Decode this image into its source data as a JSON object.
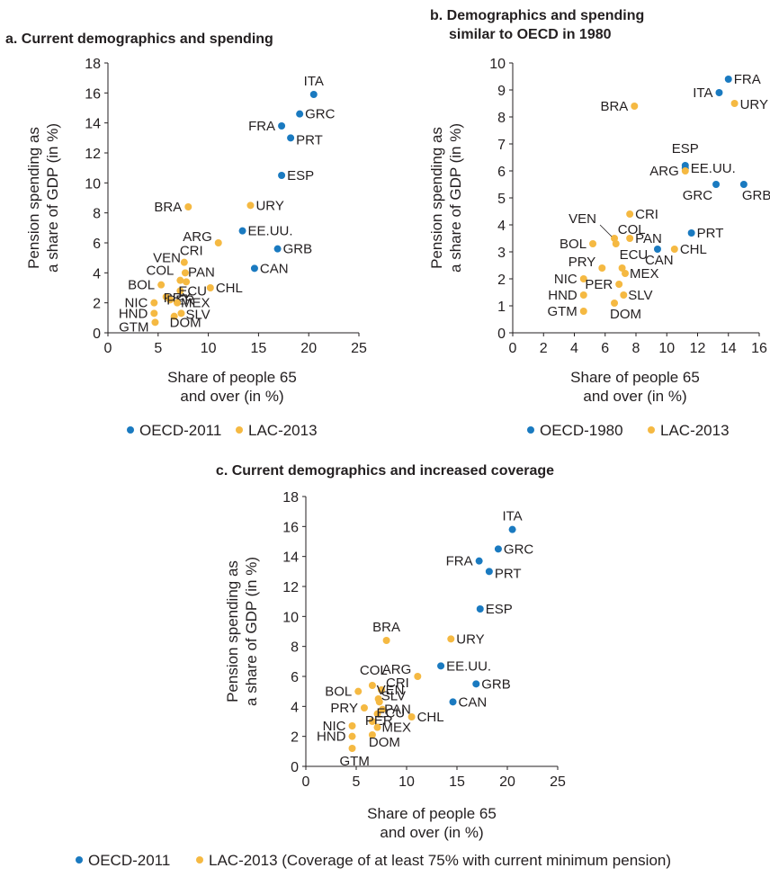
{
  "colors": {
    "oecd": "#1a7ac0",
    "lac": "#f5b942"
  },
  "chart_data": [
    {
      "id": "a",
      "type": "scatter",
      "title": [
        "a. Current demographics and spending"
      ],
      "xlabel": [
        "Share of people 65",
        "and over (in %)"
      ],
      "ylabel": [
        "Pension spending as",
        "a share of GDP (in %)"
      ],
      "xlim": [
        0,
        25
      ],
      "ylim": [
        0,
        18
      ],
      "xticks": [
        0,
        5,
        10,
        15,
        20,
        25
      ],
      "yticks": [
        0,
        2,
        4,
        6,
        8,
        10,
        12,
        14,
        16,
        18
      ],
      "legend": "bottom",
      "series": [
        {
          "name": "OECD-2011",
          "color": "oecd",
          "points": [
            {
              "label": "ITA",
              "x": 20.5,
              "y": 15.9
            },
            {
              "label": "GRC",
              "x": 19.1,
              "y": 14.6
            },
            {
              "label": "FRA",
              "x": 17.3,
              "y": 13.8
            },
            {
              "label": "PRT",
              "x": 18.2,
              "y": 13.0
            },
            {
              "label": "ESP",
              "x": 17.3,
              "y": 10.5
            },
            {
              "label": "EE.UU.",
              "x": 13.4,
              "y": 6.8
            },
            {
              "label": "GRB",
              "x": 16.9,
              "y": 5.6
            },
            {
              "label": "CAN",
              "x": 14.6,
              "y": 4.3
            }
          ]
        },
        {
          "name": "LAC-2013",
          "color": "lac",
          "points": [
            {
              "label": "BRA",
              "x": 8.0,
              "y": 8.4
            },
            {
              "label": "URY",
              "x": 14.2,
              "y": 8.5
            },
            {
              "label": "ARG",
              "x": 11.0,
              "y": 6.0
            },
            {
              "label": "CRI",
              "x": 7.6,
              "y": 4.7
            },
            {
              "label": "VEN",
              "x": 7.7,
              "y": 4.0
            },
            {
              "label": "COL",
              "x": 7.2,
              "y": 3.5
            },
            {
              "label": "PAN",
              "x": 7.8,
              "y": 3.4
            },
            {
              "label": "CHL",
              "x": 10.2,
              "y": 3.0
            },
            {
              "label": "BOL",
              "x": 5.3,
              "y": 3.2
            },
            {
              "label": "ECU",
              "x": 7.2,
              "y": 2.8
            },
            {
              "label": "PRY",
              "x": 5.8,
              "y": 2.4
            },
            {
              "label": "PER",
              "x": 6.2,
              "y": 2.2
            },
            {
              "label": "MEX",
              "x": 6.9,
              "y": 2.0
            },
            {
              "label": "NIC",
              "x": 4.6,
              "y": 2.0
            },
            {
              "label": "SLV",
              "x": 7.3,
              "y": 1.3
            },
            {
              "label": "HND",
              "x": 4.6,
              "y": 1.3
            },
            {
              "label": "DOM",
              "x": 6.6,
              "y": 1.1
            },
            {
              "label": "GTM",
              "x": 4.7,
              "y": 0.7
            }
          ]
        }
      ]
    },
    {
      "id": "b",
      "type": "scatter",
      "title": [
        "b. Demographics and spending",
        "similar to OECD in 1980"
      ],
      "xlabel": [
        "Share of people 65",
        "and over (in %)"
      ],
      "ylabel": [
        "Pension spending as",
        "a share of GDP (in %)"
      ],
      "xlim": [
        0,
        16
      ],
      "ylim": [
        0,
        10
      ],
      "xticks": [
        0,
        2,
        4,
        6,
        8,
        10,
        12,
        14,
        16
      ],
      "yticks": [
        0,
        1,
        2,
        3,
        4,
        5,
        6,
        7,
        8,
        9,
        10
      ],
      "legend": "bottom",
      "series": [
        {
          "name": "OECD-1980",
          "color": "oecd",
          "points": [
            {
              "label": "FRA",
              "x": 14.0,
              "y": 9.4
            },
            {
              "label": "ITA",
              "x": 13.4,
              "y": 8.9
            },
            {
              "label": "ESP",
              "x": 11.2,
              "y": 6.2
            },
            {
              "label": "EE.UU.",
              "x": 11.2,
              "y": 6.1
            },
            {
              "label": "GRC",
              "x": 13.2,
              "y": 5.5
            },
            {
              "label": "GRB",
              "x": 15.0,
              "y": 5.5
            },
            {
              "label": "PRT",
              "x": 11.6,
              "y": 3.7
            },
            {
              "label": "CAN",
              "x": 9.4,
              "y": 3.1
            }
          ]
        },
        {
          "name": "LAC-2013",
          "color": "lac",
          "points": [
            {
              "label": "BRA",
              "x": 7.9,
              "y": 8.4
            },
            {
              "label": "URY",
              "x": 14.4,
              "y": 8.5
            },
            {
              "label": "ARG",
              "x": 11.2,
              "y": 6.0
            },
            {
              "label": "CRI",
              "x": 7.6,
              "y": 4.4
            },
            {
              "label": "VEN",
              "x": 6.6,
              "y": 3.5
            },
            {
              "label": "COL",
              "x": 6.7,
              "y": 3.3
            },
            {
              "label": "BOL",
              "x": 5.2,
              "y": 3.3
            },
            {
              "label": "PAN",
              "x": 7.6,
              "y": 3.5
            },
            {
              "label": "CHL",
              "x": 10.5,
              "y": 3.1
            },
            {
              "label": "ECU",
              "x": 7.1,
              "y": 2.4
            },
            {
              "label": "PRY",
              "x": 5.8,
              "y": 2.4
            },
            {
              "label": "MEX",
              "x": 7.3,
              "y": 2.2
            },
            {
              "label": "NIC",
              "x": 4.6,
              "y": 2.0
            },
            {
              "label": "PER",
              "x": 6.9,
              "y": 1.8
            },
            {
              "label": "SLV",
              "x": 7.2,
              "y": 1.4
            },
            {
              "label": "HND",
              "x": 4.6,
              "y": 1.4
            },
            {
              "label": "DOM",
              "x": 6.6,
              "y": 1.1
            },
            {
              "label": "GTM",
              "x": 4.6,
              "y": 0.8
            }
          ]
        }
      ]
    },
    {
      "id": "c",
      "type": "scatter",
      "title": [
        "c. Current demographics and increased coverage"
      ],
      "xlabel": [
        "Share of people 65",
        "and over (in %)"
      ],
      "ylabel": [
        "Pension spending as",
        "a share of GDP (in %)"
      ],
      "xlim": [
        0,
        25
      ],
      "ylim": [
        0,
        18
      ],
      "xticks": [
        0,
        5,
        10,
        15,
        20,
        25
      ],
      "yticks": [
        0,
        2,
        4,
        6,
        8,
        10,
        12,
        14,
        16,
        18
      ],
      "legend": "bottom",
      "series": [
        {
          "name": "OECD-2011",
          "color": "oecd",
          "points": [
            {
              "label": "ITA",
              "x": 20.5,
              "y": 15.8
            },
            {
              "label": "GRC",
              "x": 19.1,
              "y": 14.5
            },
            {
              "label": "FRA",
              "x": 17.2,
              "y": 13.7
            },
            {
              "label": "PRT",
              "x": 18.2,
              "y": 13.0
            },
            {
              "label": "ESP",
              "x": 17.3,
              "y": 10.5
            },
            {
              "label": "EE.UU.",
              "x": 13.4,
              "y": 6.7
            },
            {
              "label": "GRB",
              "x": 16.9,
              "y": 5.5
            },
            {
              "label": "CAN",
              "x": 14.6,
              "y": 4.3
            }
          ]
        },
        {
          "name": "LAC-2013 (Coverage of at least 75% with current minimum pension)",
          "color": "lac",
          "points": [
            {
              "label": "BRA",
              "x": 8.0,
              "y": 8.4
            },
            {
              "label": "URY",
              "x": 14.4,
              "y": 8.5
            },
            {
              "label": "ARG",
              "x": 11.1,
              "y": 6.0
            },
            {
              "label": "COL",
              "x": 6.6,
              "y": 5.4
            },
            {
              "label": "BOL",
              "x": 5.2,
              "y": 5.0
            },
            {
              "label": "CRI",
              "x": 7.5,
              "y": 5.1
            },
            {
              "label": "VEN",
              "x": 7.2,
              "y": 4.5
            },
            {
              "label": "SLV",
              "x": 7.3,
              "y": 4.3
            },
            {
              "label": "PRY",
              "x": 5.8,
              "y": 3.9
            },
            {
              "label": "PAN",
              "x": 7.6,
              "y": 3.8
            },
            {
              "label": "ECU",
              "x": 7.1,
              "y": 3.5
            },
            {
              "label": "CHL",
              "x": 10.5,
              "y": 3.3
            },
            {
              "label": "PER",
              "x": 6.6,
              "y": 3.0
            },
            {
              "label": "NIC",
              "x": 4.6,
              "y": 2.7
            },
            {
              "label": "MEX",
              "x": 7.1,
              "y": 2.6
            },
            {
              "label": "HND",
              "x": 4.6,
              "y": 2.0
            },
            {
              "label": "DOM",
              "x": 6.6,
              "y": 2.1
            },
            {
              "label": "GTM",
              "x": 4.6,
              "y": 1.2
            }
          ]
        }
      ]
    }
  ]
}
